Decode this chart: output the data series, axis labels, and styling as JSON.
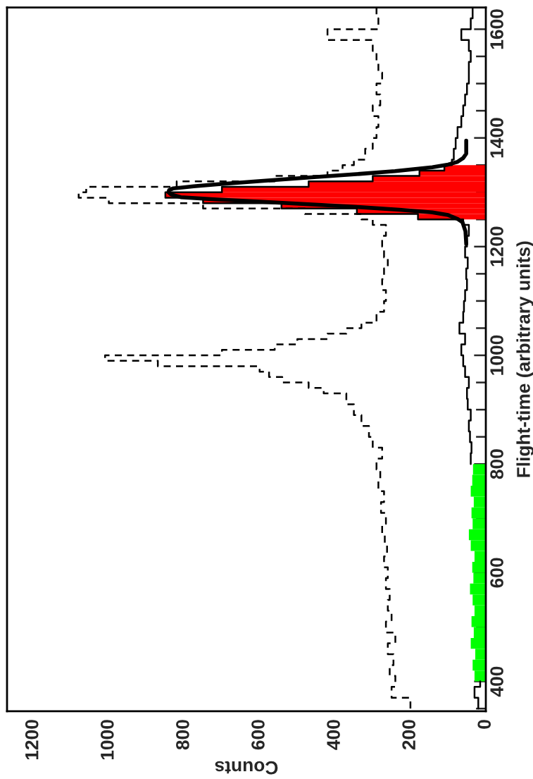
{
  "chart_data": {
    "type": "step",
    "orientation": "horizontal",
    "xlabel": "Counts",
    "ylabel": "Flight-time (arbitrary units)",
    "xlim": [
      1270,
      0
    ],
    "xticks": [
      0,
      200,
      400,
      600,
      800,
      1000,
      1200
    ],
    "ylim": [
      345,
      1640
    ],
    "yticks": [
      400,
      600,
      800,
      1000,
      1200,
      1400,
      1600
    ],
    "grid": false,
    "series": [
      {
        "color": "#000000",
        "line_style": "dashed",
        "x": [
          350,
          370,
          390,
          410,
          430,
          450,
          470,
          490,
          510,
          530,
          550,
          570,
          590,
          610,
          630,
          650,
          670,
          690,
          710,
          730,
          750,
          770,
          790,
          810,
          830,
          850,
          870,
          890,
          910,
          930,
          940,
          950,
          960,
          970,
          980,
          990,
          1000,
          1010,
          1020,
          1030,
          1040,
          1050,
          1060,
          1080,
          1100,
          1120,
          1140,
          1160,
          1180,
          1200,
          1220,
          1240,
          1250,
          1260,
          1270,
          1280,
          1290,
          1300,
          1310,
          1320,
          1330,
          1340,
          1350,
          1360,
          1380,
          1400,
          1420,
          1440,
          1460,
          1480,
          1500,
          1520,
          1540,
          1560,
          1580,
          1600,
          1620,
          1640
        ],
        "values": [
          200,
          250,
          240,
          255,
          245,
          260,
          240,
          265,
          250,
          260,
          255,
          265,
          260,
          270,
          262,
          268,
          275,
          265,
          278,
          270,
          285,
          280,
          290,
          275,
          300,
          310,
          330,
          350,
          370,
          430,
          470,
          540,
          575,
          600,
          870,
          1010,
          700,
          560,
          500,
          420,
          370,
          330,
          290,
          270,
          265,
          275,
          270,
          260,
          270,
          275,
          265,
          300,
          330,
          480,
          750,
          1000,
          1080,
          1060,
          820,
          560,
          420,
          380,
          350,
          320,
          300,
          290,
          285,
          300,
          280,
          290,
          275,
          285,
          290,
          300,
          420,
          285,
          290,
          290
        ]
      },
      {
        "color": "#000000",
        "line_style": "solid",
        "x": [
          350,
          370,
          390,
          400
        ],
        "values": [
          20,
          30,
          15,
          15
        ]
      },
      {
        "type": "histogram",
        "color": "#00ff00",
        "bins": [
          400,
          420,
          440,
          460,
          480,
          500,
          520,
          540,
          560,
          580,
          600,
          620,
          640,
          660,
          680,
          700,
          720,
          740,
          760,
          780,
          800
        ],
        "values": [
          30,
          35,
          28,
          40,
          32,
          38,
          30,
          35,
          42,
          33,
          36,
          30,
          40,
          45,
          35,
          38,
          32,
          40,
          36,
          34
        ]
      },
      {
        "type": "histogram",
        "color": "#ff0000",
        "bins": [
          1250,
          1260,
          1270,
          1280,
          1290,
          1300,
          1310,
          1320,
          1330,
          1340,
          1350
        ],
        "values": [
          180,
          342,
          542,
          750,
          850,
          700,
          470,
          300,
          176,
          110
        ]
      },
      {
        "color": "#000000",
        "line_style": "solid",
        "x": [
          800,
          820,
          840,
          860,
          880,
          900,
          920,
          940,
          960,
          980,
          1000,
          1020,
          1040,
          1060,
          1080,
          1100,
          1120,
          1140,
          1160,
          1180,
          1200,
          1220,
          1240,
          1250,
          1260,
          1270,
          1280,
          1290,
          1300,
          1310,
          1320,
          1330,
          1340,
          1350,
          1360,
          1380,
          1400,
          1420,
          1440,
          1460,
          1480,
          1500,
          1520,
          1540,
          1560,
          1580,
          1600,
          1620,
          1640
        ],
        "values": [
          40,
          38,
          42,
          45,
          40,
          48,
          50,
          45,
          55,
          60,
          65,
          55,
          70,
          60,
          58,
          55,
          50,
          52,
          48,
          55,
          50,
          45,
          60,
          180,
          342,
          542,
          750,
          850,
          700,
          470,
          300,
          176,
          110,
          90,
          85,
          80,
          75,
          65,
          60,
          55,
          50,
          45,
          45,
          40,
          45,
          65,
          40,
          35,
          35
        ]
      },
      {
        "type": "line",
        "color": "#000000",
        "line_style": "solid",
        "x": [
          1205,
          1228,
          1245,
          1251,
          1258,
          1263,
          1268,
          1273,
          1278,
          1283,
          1287,
          1291,
          1296,
          1300,
          1304,
          1307,
          1311,
          1315,
          1321,
          1327,
          1333,
          1339,
          1346,
          1351,
          1356,
          1363,
          1371,
          1395
        ],
        "values": [
          52,
          54,
          62,
          75,
          100,
          142,
          230,
          342,
          470,
          609,
          720,
          809,
          835,
          842,
          840,
          830,
          775,
          708,
          590,
          475,
          350,
          241,
          142,
          100,
          75,
          60,
          52,
          52
        ]
      }
    ]
  }
}
